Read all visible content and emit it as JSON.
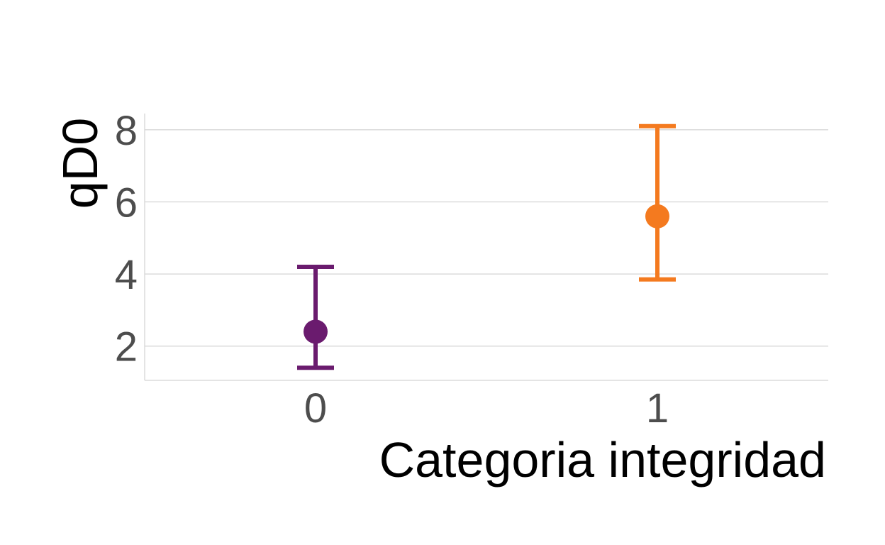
{
  "chart_data": {
    "type": "scatter",
    "subtype": "point-with-error-bars",
    "xlabel": "Categoria integridad",
    "ylabel": "qD0",
    "categories": [
      "0",
      "1"
    ],
    "y_ticks": [
      "2",
      "4",
      "6",
      "8"
    ],
    "ylim": [
      1.05,
      8.45
    ],
    "grid": "horizontal major gridlines",
    "legend": "none",
    "points": [
      {
        "category": "0",
        "value": 2.4,
        "lower": 1.4,
        "upper": 4.2,
        "color": "#6a1b6e"
      },
      {
        "category": "1",
        "value": 5.6,
        "lower": 3.85,
        "upper": 8.1,
        "color": "#f47a1f"
      }
    ]
  },
  "colors": {
    "grid": "#d3d3d3",
    "tick_text": "#4d4d4d",
    "axis_title": "#000000"
  }
}
